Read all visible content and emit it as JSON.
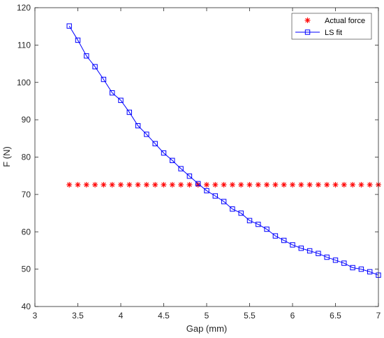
{
  "chart_data": {
    "type": "line",
    "xlabel": "Gap (mm)",
    "ylabel": "F (N)",
    "xlim": [
      3,
      7
    ],
    "ylim": [
      40,
      120
    ],
    "xticks": [
      3,
      3.5,
      4,
      4.5,
      5,
      5.5,
      6,
      6.5,
      7
    ],
    "xtick_labels": [
      "3",
      "3.5",
      "4",
      "4.5",
      "5",
      "5.5",
      "6",
      "6.5",
      "7"
    ],
    "yticks": [
      40,
      50,
      60,
      70,
      80,
      90,
      100,
      110,
      120
    ],
    "ytick_labels": [
      "40",
      "50",
      "60",
      "70",
      "80",
      "90",
      "100",
      "110",
      "120"
    ],
    "grid": false,
    "legend_position": "top-right",
    "x": [
      3.4,
      3.5,
      3.6,
      3.7,
      3.8,
      3.9,
      4.0,
      4.1,
      4.2,
      4.3,
      4.4,
      4.5,
      4.6,
      4.7,
      4.8,
      4.9,
      5.0,
      5.1,
      5.2,
      5.3,
      5.4,
      5.5,
      5.6,
      5.7,
      5.8,
      5.9,
      6.0,
      6.1,
      6.2,
      6.3,
      6.4,
      6.5,
      6.6,
      6.7,
      6.8,
      6.9,
      7.0
    ],
    "series": [
      {
        "name": "Actual force",
        "color": "#ff0000",
        "marker": "asterisk",
        "line": "none",
        "values": [
          72.6,
          72.6,
          72.6,
          72.6,
          72.6,
          72.6,
          72.6,
          72.6,
          72.6,
          72.6,
          72.6,
          72.6,
          72.6,
          72.6,
          72.6,
          72.6,
          72.6,
          72.6,
          72.6,
          72.6,
          72.6,
          72.6,
          72.6,
          72.6,
          72.6,
          72.6,
          72.6,
          72.6,
          72.6,
          72.6,
          72.6,
          72.6,
          72.6,
          72.6,
          72.6,
          72.6,
          72.6
        ]
      },
      {
        "name": "LS fit",
        "color": "#0000ff",
        "marker": "square",
        "line": "solid",
        "values": [
          115.1,
          111.3,
          107.1,
          104.2,
          100.8,
          97.2,
          95.2,
          92.0,
          88.4,
          86.1,
          83.6,
          81.1,
          79.1,
          76.9,
          74.9,
          72.9,
          71.0,
          69.6,
          68.1,
          66.1,
          65.0,
          63.0,
          62.0,
          60.7,
          58.9,
          57.7,
          56.5,
          55.6,
          54.9,
          54.2,
          53.2,
          52.4,
          51.6,
          50.4,
          50.0,
          49.3,
          48.4
        ]
      }
    ]
  }
}
